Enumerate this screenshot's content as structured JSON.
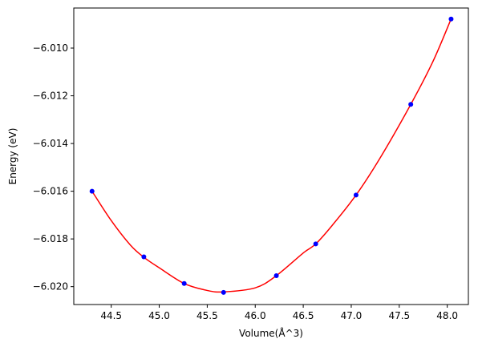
{
  "chart_data": {
    "type": "line",
    "title": "",
    "xlabel": "Volume(Å^3)",
    "ylabel": "Energy (eV)",
    "xlim": [
      44.11,
      48.22
    ],
    "ylim": [
      -6.02075,
      -6.00832
    ],
    "x_ticks": [
      44.5,
      45.0,
      45.5,
      46.0,
      46.5,
      47.0,
      47.5,
      48.0
    ],
    "x_tick_labels": [
      "44.5",
      "45.0",
      "45.5",
      "46.0",
      "46.5",
      "47.0",
      "47.5",
      "48.0"
    ],
    "y_ticks": [
      -6.01,
      -6.012,
      -6.014,
      -6.016,
      -6.018,
      -6.02
    ],
    "y_tick_labels": [
      "−6.010",
      "−6.012",
      "−6.014",
      "−6.016",
      "−6.018",
      "−6.020"
    ],
    "grid": false,
    "series": [
      {
        "kind": "scatter",
        "color": "#0000ff",
        "x": [
          44.3,
          44.84,
          45.26,
          45.67,
          46.22,
          46.63,
          47.05,
          47.62,
          48.04
        ],
        "y": [
          -6.016,
          -6.01875,
          -6.01987,
          -6.02024,
          -6.01954,
          -6.01821,
          -6.01616,
          -6.01236,
          -6.00878
        ]
      },
      {
        "kind": "fit",
        "color": "#ff0000",
        "x": [
          44.3,
          44.5,
          44.7,
          44.84,
          45.0,
          45.26,
          45.5,
          45.67,
          46.0,
          46.22,
          46.5,
          46.63,
          46.8,
          47.05,
          47.3,
          47.62,
          47.85,
          48.04
        ],
        "y": [
          -6.016,
          -6.01723,
          -6.01826,
          -6.01877,
          -6.01921,
          -6.01987,
          -6.02016,
          -6.02022,
          -6.02005,
          -6.01954,
          -6.01859,
          -6.01821,
          -6.01744,
          -6.01616,
          -6.01461,
          -6.01236,
          -6.01057,
          -6.00878
        ]
      }
    ]
  }
}
